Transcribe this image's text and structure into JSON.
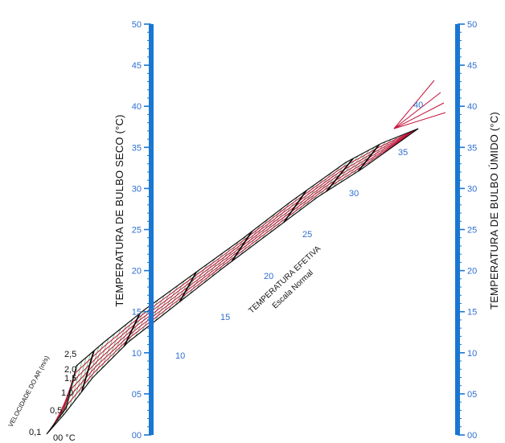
{
  "colors": {
    "axis": "#1976d2",
    "tick_text": "#2f6fd0",
    "velocity_lines": "#c4123a",
    "effective_temp_lines": "#111111",
    "grid_lines": "#3aa655",
    "outline": "#111111"
  },
  "left_axis": {
    "title": "TEMPERATURA DE BULBO SECO  (°C)",
    "ticks": [
      "00",
      "05",
      "10",
      "15",
      "20",
      "25",
      "30",
      "35",
      "40",
      "45",
      "50"
    ]
  },
  "right_axis": {
    "title": "TEMPERATURA DE BULBO ÚMIDO (°C)",
    "ticks": [
      "00",
      "05",
      "10",
      "15",
      "20",
      "25",
      "30",
      "35",
      "40",
      "45",
      "50"
    ]
  },
  "velocity_scale": {
    "title": "VELOCIDADE DO AR  (m/s)",
    "values": [
      "0,1",
      "0,5",
      "1,0",
      "1,5",
      "2,0",
      "2,5"
    ],
    "zero_label": "00 °C"
  },
  "effective_temperature": {
    "title": "TEMPERATURA EFETIVA",
    "subtitle": "Escala Normal",
    "values": [
      "10",
      "15",
      "20",
      "25",
      "30",
      "35",
      "40"
    ]
  }
}
